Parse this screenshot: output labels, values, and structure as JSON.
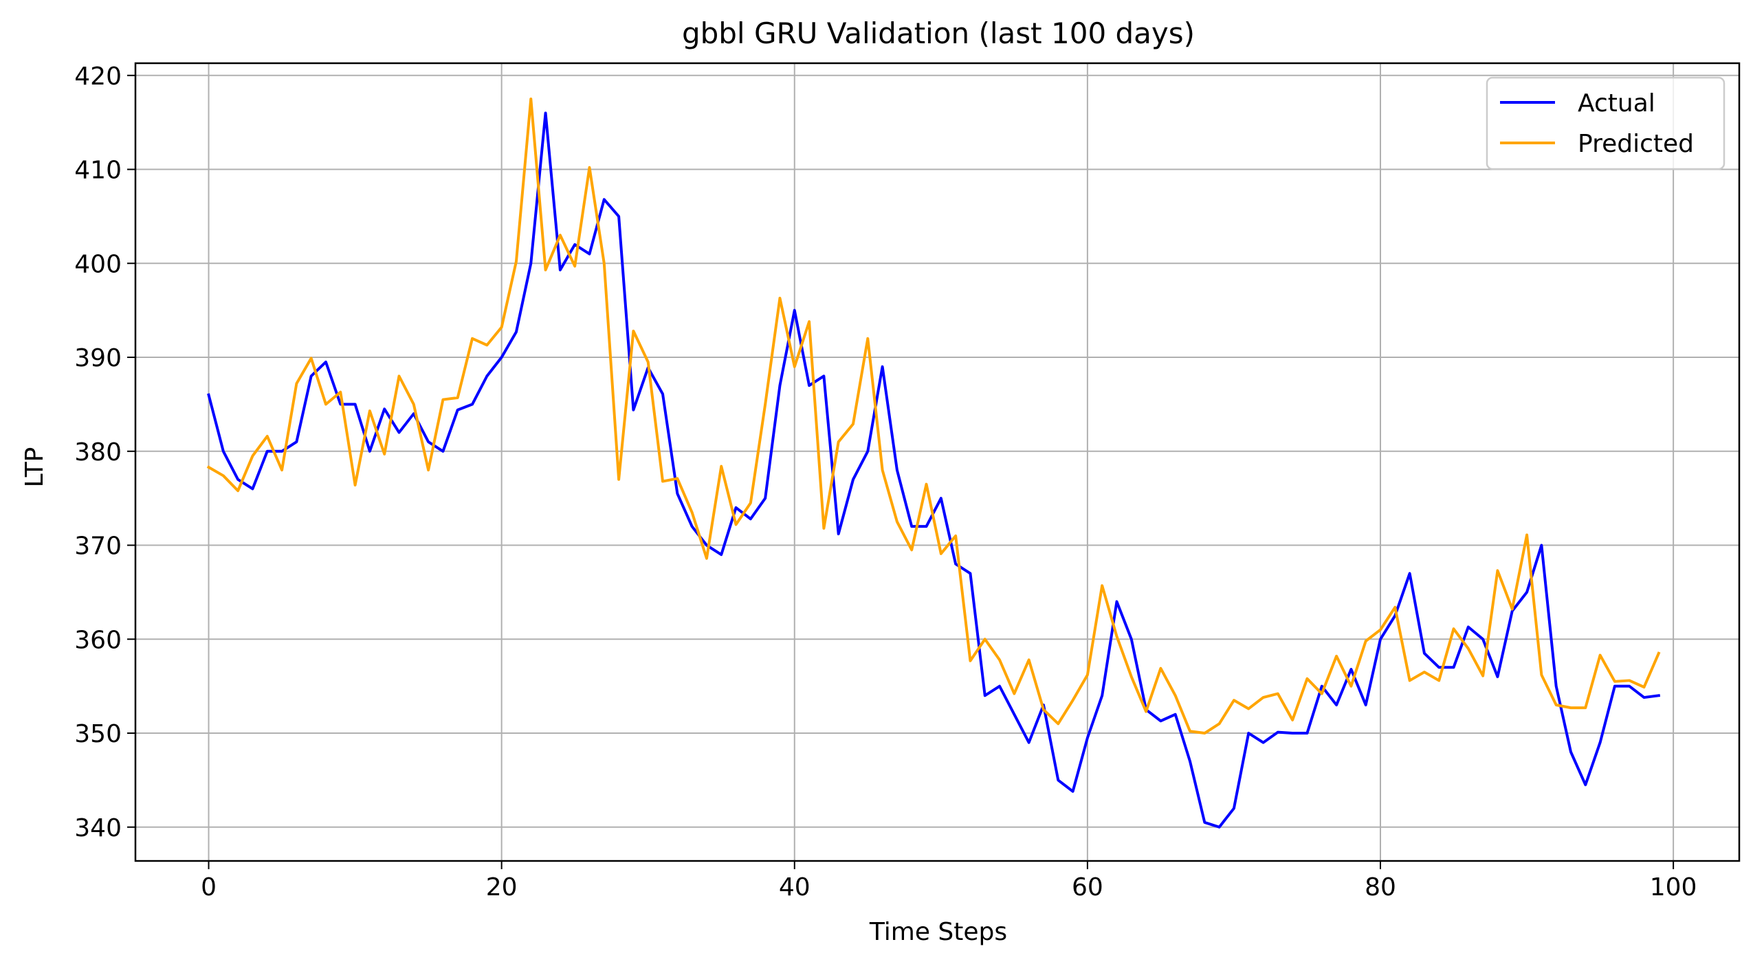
{
  "chart_data": {
    "type": "line",
    "title": "gbbl GRU Validation (last 100 days)",
    "xlabel": "Time Steps",
    "ylabel": "LTP",
    "xlim": [
      -5,
      104.5
    ],
    "ylim": [
      336.4,
      421.3
    ],
    "xticks": [
      0,
      20,
      40,
      60,
      80,
      100
    ],
    "yticks": [
      340,
      350,
      360,
      370,
      380,
      390,
      400,
      410,
      420
    ],
    "grid": true,
    "legend_position": "top-right",
    "x": [
      0,
      1,
      2,
      3,
      4,
      5,
      6,
      7,
      8,
      9,
      10,
      11,
      12,
      13,
      14,
      15,
      16,
      17,
      18,
      19,
      20,
      21,
      22,
      23,
      24,
      25,
      26,
      27,
      28,
      29,
      30,
      31,
      32,
      33,
      34,
      35,
      36,
      37,
      38,
      39,
      40,
      41,
      42,
      43,
      44,
      45,
      46,
      47,
      48,
      49,
      50,
      51,
      52,
      53,
      54,
      55,
      56,
      57,
      58,
      59,
      60,
      61,
      62,
      63,
      64,
      65,
      66,
      67,
      68,
      69,
      70,
      71,
      72,
      73,
      74,
      75,
      76,
      77,
      78,
      79,
      80,
      81,
      82,
      83,
      84,
      85,
      86,
      87,
      88,
      89,
      90,
      91,
      92,
      93,
      94,
      95,
      96,
      97,
      98,
      99
    ],
    "series": [
      {
        "name": "Actual",
        "color": "#0000ff",
        "values": [
          386.0,
          380.0,
          377.0,
          376.0,
          380.0,
          380.0,
          381.0,
          388.0,
          389.5,
          385.0,
          385.0,
          380.0,
          384.5,
          382.0,
          384.0,
          381.0,
          380.0,
          384.4,
          385.0,
          388.0,
          390.0,
          392.7,
          400.0,
          416.0,
          399.3,
          402.0,
          401.0,
          406.8,
          405.0,
          384.4,
          388.9,
          386.1,
          375.5,
          372.0,
          370.0,
          369.0,
          374.0,
          372.8,
          375.0,
          387.0,
          395.0,
          387.0,
          388.0,
          371.2,
          377.0,
          380.0,
          389.0,
          378.0,
          372.0,
          372.0,
          375.0,
          368.0,
          367.0,
          354.0,
          355.0,
          352.0,
          349.0,
          353.0,
          345.0,
          343.8,
          349.5,
          354.0,
          364.0,
          360.0,
          352.5,
          351.3,
          352.0,
          347.0,
          340.5,
          340.0,
          342.0,
          350.0,
          349.0,
          350.1,
          350.0,
          350.0,
          355.0,
          353.0,
          356.8,
          353.0,
          360.0,
          362.5,
          367.0,
          358.5,
          357.0,
          357.0,
          361.3,
          360.0,
          356.0,
          363.0,
          365.0,
          370.0,
          355.0,
          348.0,
          344.5,
          349.0,
          355.0,
          355.0,
          353.8,
          354.0
        ]
      },
      {
        "name": "Predicted",
        "color": "#ffa500",
        "values": [
          378.3,
          377.4,
          375.8,
          379.5,
          381.6,
          378.0,
          387.2,
          389.9,
          385.0,
          386.3,
          376.4,
          384.3,
          379.7,
          388.0,
          385.0,
          378.0,
          385.5,
          385.7,
          392.0,
          391.3,
          393.2,
          400.2,
          417.5,
          399.3,
          403.0,
          399.7,
          410.2,
          400.0,
          377.0,
          392.8,
          389.5,
          376.8,
          377.1,
          373.5,
          368.6,
          378.4,
          372.2,
          374.5,
          385.0,
          396.3,
          389.0,
          393.8,
          371.8,
          381.0,
          382.9,
          392.0,
          378.0,
          372.5,
          369.5,
          376.5,
          369.1,
          371.0,
          357.7,
          360.0,
          357.8,
          354.2,
          357.8,
          352.5,
          351.0,
          353.5,
          356.2,
          365.7,
          360.3,
          356.0,
          352.3,
          356.9,
          354.0,
          350.2,
          350.0,
          351.0,
          353.5,
          352.6,
          353.8,
          354.2,
          351.4,
          355.8,
          354.2,
          358.2,
          355.0,
          359.8,
          361.0,
          363.4,
          355.6,
          356.5,
          355.6,
          361.1,
          359.0,
          356.1,
          367.3,
          363.2,
          371.1,
          356.2,
          353.0,
          352.7,
          352.7,
          358.3,
          355.5,
          355.6,
          354.9,
          358.5
        ]
      }
    ]
  }
}
